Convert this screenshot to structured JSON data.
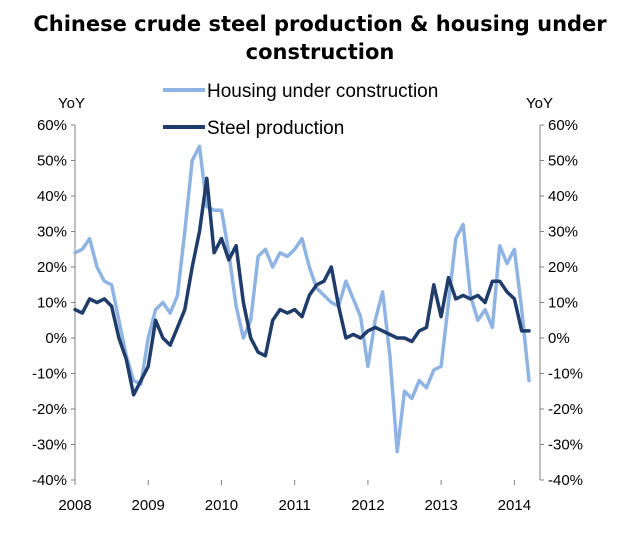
{
  "chart_data": {
    "type": "line",
    "title_lines": [
      "Chinese crude steel production & housing under",
      "construction"
    ],
    "left_axis_label": "YoY",
    "right_axis_label": "YoY",
    "ylim": [
      -40,
      60
    ],
    "y_ticks": [
      "60%",
      "50%",
      "40%",
      "30%",
      "20%",
      "10%",
      "0%",
      "-10%",
      "-20%",
      "-30%",
      "-40%"
    ],
    "y_tick_values": [
      60,
      50,
      40,
      30,
      20,
      10,
      0,
      -10,
      -20,
      -30,
      -40
    ],
    "x_range": [
      2008.0,
      2014.35
    ],
    "x_ticks": [
      "2008",
      "2009",
      "2010",
      "2011",
      "2012",
      "2013",
      "2014"
    ],
    "x_tick_values": [
      2008,
      2009,
      2010,
      2011,
      2012,
      2013,
      2014
    ],
    "series": [
      {
        "name": "Housing under construction",
        "color": "#8fb4e3",
        "x": [
          2008.0,
          2008.1,
          2008.2,
          2008.3,
          2008.4,
          2008.5,
          2008.6,
          2008.7,
          2008.8,
          2008.9,
          2009.0,
          2009.1,
          2009.2,
          2009.3,
          2009.4,
          2009.5,
          2009.6,
          2009.7,
          2009.8,
          2009.9,
          2010.0,
          2010.1,
          2010.2,
          2010.3,
          2010.4,
          2010.5,
          2010.6,
          2010.7,
          2010.8,
          2010.9,
          2011.0,
          2011.1,
          2011.2,
          2011.3,
          2011.4,
          2011.5,
          2011.6,
          2011.7,
          2011.8,
          2011.9,
          2012.0,
          2012.1,
          2012.2,
          2012.3,
          2012.4,
          2012.5,
          2012.6,
          2012.7,
          2012.8,
          2012.9,
          2013.0,
          2013.1,
          2013.2,
          2013.3,
          2013.4,
          2013.5,
          2013.6,
          2013.7,
          2013.8,
          2013.9,
          2014.0,
          2014.1,
          2014.2
        ],
        "y": [
          24,
          25,
          28,
          20,
          16,
          15,
          5,
          -5,
          -12,
          -13,
          0,
          8,
          10,
          7,
          12,
          30,
          50,
          54,
          37,
          36,
          36,
          24,
          9,
          0,
          5,
          23,
          25,
          20,
          24,
          23,
          25,
          28,
          20,
          14,
          12,
          10,
          9,
          16,
          11,
          6,
          -8,
          5,
          13,
          -5,
          -32,
          -15,
          -17,
          -12,
          -14,
          -9,
          -8,
          10,
          28,
          32,
          12,
          5,
          8,
          3,
          26,
          21,
          25,
          8,
          -12
        ]
      },
      {
        "name": "Steel production",
        "color": "#1f3c6a",
        "x": [
          2008.0,
          2008.1,
          2008.2,
          2008.3,
          2008.4,
          2008.5,
          2008.6,
          2008.7,
          2008.8,
          2008.9,
          2009.0,
          2009.1,
          2009.2,
          2009.3,
          2009.4,
          2009.5,
          2009.6,
          2009.7,
          2009.8,
          2009.9,
          2010.0,
          2010.1,
          2010.2,
          2010.3,
          2010.4,
          2010.5,
          2010.6,
          2010.7,
          2010.8,
          2010.9,
          2011.0,
          2011.1,
          2011.2,
          2011.3,
          2011.4,
          2011.5,
          2011.6,
          2011.7,
          2011.8,
          2011.9,
          2012.0,
          2012.1,
          2012.2,
          2012.3,
          2012.4,
          2012.5,
          2012.6,
          2012.7,
          2012.8,
          2012.9,
          2013.0,
          2013.1,
          2013.2,
          2013.3,
          2013.4,
          2013.5,
          2013.6,
          2013.7,
          2013.8,
          2013.9,
          2014.0,
          2014.1,
          2014.2
        ],
        "y": [
          8,
          7,
          11,
          10,
          11,
          9,
          0,
          -6,
          -16,
          -12,
          -8,
          5,
          0,
          -2,
          3,
          8,
          20,
          30,
          45,
          24,
          28,
          22,
          26,
          10,
          0,
          -4,
          -5,
          5,
          8,
          7,
          8,
          6,
          12,
          15,
          16,
          20,
          9,
          0,
          1,
          0,
          2,
          3,
          2,
          1,
          0,
          0,
          -1,
          2,
          3,
          15,
          6,
          17,
          11,
          12,
          11,
          12,
          10,
          16,
          16,
          13,
          11,
          2,
          2
        ]
      }
    ],
    "legend_position": "top-center",
    "grid": false
  }
}
